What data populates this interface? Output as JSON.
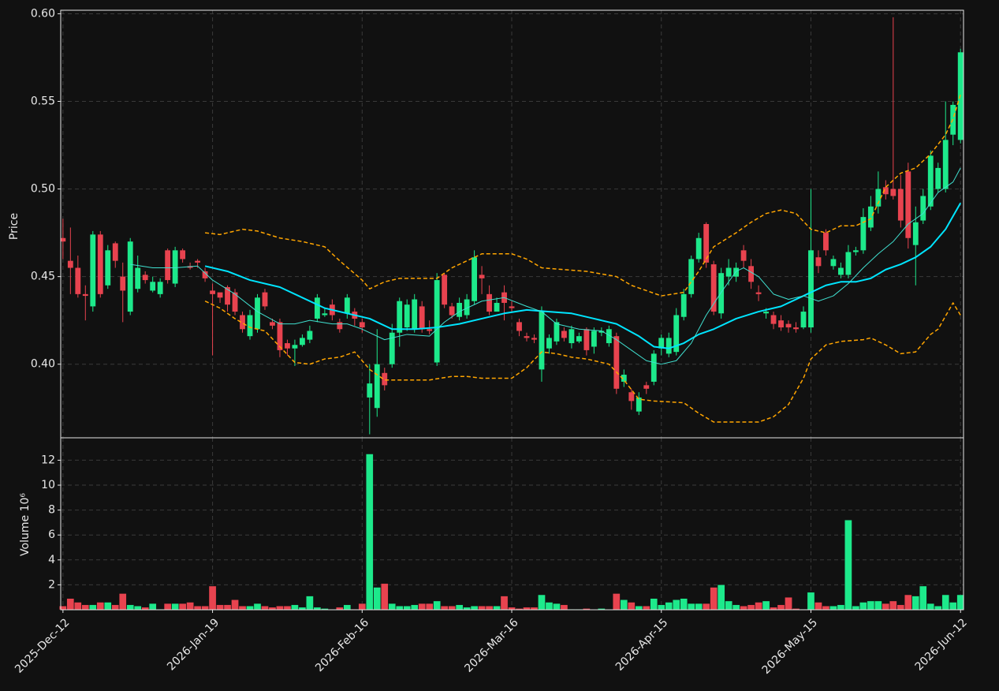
{
  "chart_data": {
    "type": "candlestick",
    "ylabel": "Price",
    "volume_label": "Volume  10⁶",
    "categories": [
      "2025-Dec-12",
      null,
      null,
      null,
      null,
      null,
      null,
      null,
      null,
      null,
      null,
      null,
      null,
      null,
      null,
      null,
      null,
      null,
      null,
      null,
      "2026-Jan-19",
      null,
      null,
      null,
      null,
      null,
      null,
      null,
      null,
      null,
      null,
      null,
      null,
      null,
      null,
      null,
      null,
      null,
      null,
      null,
      "2026-Feb-16",
      null,
      null,
      null,
      null,
      null,
      null,
      null,
      null,
      null,
      null,
      null,
      null,
      null,
      null,
      null,
      null,
      null,
      null,
      null,
      "2026-Mar-16",
      null,
      null,
      null,
      null,
      null,
      null,
      null,
      null,
      null,
      null,
      null,
      null,
      null,
      null,
      null,
      null,
      null,
      null,
      null,
      "2026-Apr-15",
      null,
      null,
      null,
      null,
      null,
      null,
      null,
      null,
      null,
      null,
      null,
      null,
      null,
      null,
      null,
      null,
      null,
      null,
      null,
      "2026-May-15",
      null,
      null,
      null,
      null,
      null,
      null,
      null,
      null,
      null,
      null,
      null,
      null,
      null,
      null,
      null,
      null,
      null,
      null,
      null,
      "2026-Jun-12"
    ],
    "open": [
      0.472,
      0.459,
      0.455,
      0.44,
      0.433,
      0.474,
      0.445,
      0.469,
      0.45,
      0.43,
      0.443,
      0.451,
      0.442,
      0.44,
      0.465,
      0.446,
      0.465,
      0.456,
      0.459,
      0.453,
      0.442,
      0.441,
      0.444,
      0.441,
      0.428,
      0.416,
      0.42,
      0.441,
      0.424,
      0.424,
      0.412,
      0.409,
      0.411,
      0.414,
      0.426,
      0.428,
      0.434,
      0.424,
      0.429,
      0.43,
      0.424,
      0.381,
      0.375,
      0.395,
      0.4,
      0.418,
      0.421,
      0.42,
      0.433,
      0.42,
      0.401,
      0.451,
      0.433,
      0.427,
      0.428,
      0.436,
      0.451,
      0.44,
      0.43,
      0.441,
      0.433,
      0.424,
      0.416,
      0.415,
      0.397,
      0.409,
      0.413,
      0.419,
      0.412,
      0.413,
      0.42,
      0.41,
      0.418,
      0.412,
      0.416,
      0.39,
      0.384,
      0.373,
      0.388,
      0.39,
      0.409,
      0.406,
      0.407,
      0.427,
      0.44,
      0.46,
      0.48,
      0.457,
      0.429,
      0.45,
      0.45,
      0.465,
      0.456,
      0.441,
      0.429,
      0.428,
      0.425,
      0.423,
      0.421,
      0.421,
      0.421,
      0.461,
      0.475,
      0.456,
      0.451,
      0.451,
      0.464,
      0.465,
      0.478,
      0.49,
      0.501,
      0.5,
      0.5,
      0.51,
      0.468,
      0.482,
      0.49,
      0.5,
      0.5,
      0.531,
      0.528
    ],
    "high": [
      0.483,
      0.478,
      0.462,
      0.445,
      0.476,
      0.476,
      0.468,
      0.47,
      0.458,
      0.472,
      0.462,
      0.453,
      0.45,
      0.449,
      0.466,
      0.467,
      0.466,
      0.458,
      0.46,
      0.455,
      0.446,
      0.44,
      0.445,
      0.443,
      0.43,
      0.431,
      0.44,
      0.443,
      0.426,
      0.426,
      0.414,
      0.414,
      0.417,
      0.422,
      0.44,
      0.432,
      0.437,
      0.426,
      0.44,
      0.432,
      0.426,
      0.4,
      0.42,
      0.398,
      0.423,
      0.438,
      0.437,
      0.44,
      0.436,
      0.425,
      0.452,
      0.452,
      0.435,
      0.438,
      0.44,
      0.465,
      0.456,
      0.445,
      0.438,
      0.445,
      0.436,
      0.426,
      0.418,
      0.417,
      0.433,
      0.417,
      0.426,
      0.421,
      0.422,
      0.418,
      0.421,
      0.421,
      0.421,
      0.422,
      0.418,
      0.397,
      0.386,
      0.384,
      0.39,
      0.408,
      0.417,
      0.418,
      0.432,
      0.443,
      0.462,
      0.475,
      0.481,
      0.459,
      0.455,
      0.46,
      0.458,
      0.468,
      0.46,
      0.445,
      0.432,
      0.43,
      0.428,
      0.425,
      0.424,
      0.433,
      0.5,
      0.465,
      0.477,
      0.462,
      0.458,
      0.468,
      0.467,
      0.489,
      0.496,
      0.51,
      0.505,
      0.598,
      0.508,
      0.515,
      0.49,
      0.5,
      0.522,
      0.515,
      0.55,
      0.55,
      0.58
    ],
    "low": [
      0.46,
      0.44,
      0.438,
      0.425,
      0.43,
      0.438,
      0.443,
      0.455,
      0.424,
      0.428,
      0.441,
      0.446,
      0.441,
      0.438,
      0.446,
      0.444,
      0.458,
      0.454,
      0.455,
      0.447,
      0.405,
      0.435,
      0.43,
      0.428,
      0.418,
      0.414,
      0.418,
      0.431,
      0.42,
      0.404,
      0.405,
      0.399,
      0.41,
      0.412,
      0.424,
      0.427,
      0.425,
      0.418,
      0.426,
      0.422,
      0.418,
      0.36,
      0.37,
      0.385,
      0.398,
      0.41,
      0.419,
      0.418,
      0.418,
      0.417,
      0.399,
      0.432,
      0.426,
      0.425,
      0.426,
      0.434,
      0.44,
      0.428,
      0.43,
      0.425,
      0.43,
      0.416,
      0.413,
      0.412,
      0.39,
      0.406,
      0.411,
      0.413,
      0.409,
      0.412,
      0.405,
      0.406,
      0.416,
      0.41,
      0.383,
      0.387,
      0.374,
      0.371,
      0.383,
      0.388,
      0.405,
      0.404,
      0.405,
      0.425,
      0.438,
      0.458,
      0.455,
      0.428,
      0.426,
      0.445,
      0.447,
      0.455,
      0.443,
      0.436,
      0.426,
      0.42,
      0.419,
      0.418,
      0.418,
      0.42,
      0.418,
      0.452,
      0.462,
      0.454,
      0.449,
      0.449,
      0.462,
      0.463,
      0.476,
      0.486,
      0.494,
      0.494,
      0.478,
      0.466,
      0.445,
      0.48,
      0.488,
      0.498,
      0.498,
      0.525,
      0.526
    ],
    "close": [
      0.47,
      0.455,
      0.44,
      0.439,
      0.474,
      0.44,
      0.465,
      0.459,
      0.442,
      0.47,
      0.455,
      0.448,
      0.447,
      0.447,
      0.448,
      0.465,
      0.46,
      0.455,
      0.458,
      0.449,
      0.44,
      0.438,
      0.434,
      0.43,
      0.42,
      0.428,
      0.438,
      0.433,
      0.422,
      0.408,
      0.409,
      0.411,
      0.415,
      0.419,
      0.438,
      0.429,
      0.428,
      0.42,
      0.438,
      0.426,
      0.421,
      0.389,
      0.4,
      0.388,
      0.418,
      0.436,
      0.434,
      0.437,
      0.42,
      0.419,
      0.448,
      0.434,
      0.428,
      0.435,
      0.437,
      0.461,
      0.449,
      0.43,
      0.435,
      0.435,
      0.432,
      0.419,
      0.415,
      0.414,
      0.43,
      0.415,
      0.424,
      0.415,
      0.42,
      0.416,
      0.408,
      0.419,
      0.419,
      0.42,
      0.386,
      0.394,
      0.379,
      0.381,
      0.386,
      0.406,
      0.415,
      0.415,
      0.428,
      0.44,
      0.46,
      0.472,
      0.458,
      0.43,
      0.452,
      0.455,
      0.455,
      0.459,
      0.447,
      0.44,
      0.43,
      0.423,
      0.421,
      0.421,
      0.42,
      0.43,
      0.465,
      0.456,
      0.465,
      0.46,
      0.455,
      0.464,
      0.465,
      0.484,
      0.49,
      0.5,
      0.497,
      0.496,
      0.482,
      0.472,
      0.481,
      0.496,
      0.519,
      0.512,
      0.528,
      0.548,
      0.578
    ],
    "volume": [
      0.3,
      0.9,
      0.6,
      0.4,
      0.4,
      0.6,
      0.6,
      0.4,
      1.3,
      0.4,
      0.3,
      0.2,
      0.5,
      0.05,
      0.5,
      0.5,
      0.5,
      0.6,
      0.3,
      0.3,
      1.9,
      0.4,
      0.4,
      0.8,
      0.3,
      0.3,
      0.5,
      0.3,
      0.2,
      0.3,
      0.3,
      0.4,
      0.2,
      1.1,
      0.2,
      0.1,
      0.02,
      0.2,
      0.4,
      0.05,
      0.5,
      12.5,
      1.8,
      2.1,
      0.5,
      0.3,
      0.3,
      0.4,
      0.5,
      0.5,
      0.7,
      0.3,
      0.3,
      0.4,
      0.2,
      0.3,
      0.3,
      0.3,
      0.3,
      1.1,
      0.2,
      0.1,
      0.2,
      0.2,
      1.2,
      0.6,
      0.5,
      0.4,
      0.05,
      0.05,
      0.1,
      0.02,
      0.1,
      0.02,
      1.3,
      0.8,
      0.6,
      0.3,
      0.3,
      0.9,
      0.4,
      0.6,
      0.8,
      0.9,
      0.5,
      0.5,
      0.5,
      1.8,
      2.0,
      0.7,
      0.4,
      0.3,
      0.4,
      0.6,
      0.7,
      0.2,
      0.4,
      1.0,
      0.1,
      0.05,
      1.4,
      0.6,
      0.3,
      0.3,
      0.4,
      7.2,
      0.3,
      0.6,
      0.7,
      0.7,
      0.5,
      0.7,
      0.4,
      1.2,
      1.1,
      1.9,
      0.5,
      0.3,
      1.2,
      0.6,
      1.2
    ],
    "up_color": "#1de98b",
    "down_color": "#e8434f",
    "xlim": [
      -0.3,
      120.4
    ],
    "ylim": [
      0.358,
      0.602
    ],
    "yticks": [
      {
        "value": 0.4,
        "label": "0.40"
      },
      0.45,
      {
        "value": 0.5,
        "label": "0.50"
      },
      0.55,
      {
        "value": 0.6,
        "label": "0.60"
      }
    ],
    "volume_ylim": [
      0,
      13.8
    ],
    "volume_yticks": [
      2,
      4,
      6,
      8,
      10,
      12
    ],
    "grid": true,
    "overlays": [
      {
        "color": "#ffa500",
        "width": 1.5,
        "dashed": true,
        "x": [
          19,
          21,
          24,
          26,
          29,
          32,
          35,
          37,
          40,
          41,
          43,
          45,
          50,
          52,
          56,
          60,
          62,
          64,
          70,
          74,
          76,
          80,
          83,
          85,
          87,
          90,
          92,
          94,
          96,
          98,
          100,
          102,
          104,
          106,
          108,
          110,
          112,
          114,
          116,
          118,
          119,
          120
        ],
        "values": [
          0.475,
          0.474,
          0.477,
          0.476,
          0.472,
          0.47,
          0.467,
          0.459,
          0.448,
          0.443,
          0.447,
          0.449,
          0.449,
          0.455,
          0.463,
          0.463,
          0.46,
          0.455,
          0.453,
          0.45,
          0.445,
          0.439,
          0.441,
          0.453,
          0.467,
          0.475,
          0.481,
          0.486,
          0.488,
          0.486,
          0.477,
          0.475,
          0.479,
          0.479,
          0.483,
          0.501,
          0.509,
          0.512,
          0.52,
          0.531,
          0.54,
          0.554
        ]
      },
      {
        "color": "#ffa500",
        "width": 1.5,
        "dashed": true,
        "x": [
          19,
          21,
          23,
          25,
          27,
          29,
          31,
          33,
          35,
          37,
          39,
          41,
          43,
          46,
          49,
          52,
          54,
          56,
          60,
          62,
          64,
          66,
          68,
          70,
          73,
          75,
          77,
          79,
          83,
          85,
          87,
          91,
          93,
          95,
          97,
          99,
          100,
          102,
          104,
          107,
          108,
          110,
          112,
          114,
          116,
          117,
          119,
          120
        ],
        "values": [
          0.436,
          0.432,
          0.426,
          0.421,
          0.419,
          0.41,
          0.401,
          0.4,
          0.403,
          0.404,
          0.407,
          0.397,
          0.391,
          0.391,
          0.391,
          0.393,
          0.393,
          0.392,
          0.392,
          0.398,
          0.407,
          0.406,
          0.404,
          0.403,
          0.4,
          0.391,
          0.38,
          0.379,
          0.378,
          0.372,
          0.367,
          0.367,
          0.367,
          0.37,
          0.377,
          0.392,
          0.403,
          0.411,
          0.413,
          0.414,
          0.415,
          0.411,
          0.406,
          0.407,
          0.417,
          0.42,
          0.435,
          0.428
        ]
      },
      {
        "color": "#00e5ff",
        "width": 2,
        "dashed": false,
        "x": [
          19,
          22,
          25,
          29,
          32,
          35,
          38,
          41,
          44,
          47,
          50,
          53,
          56,
          59,
          62,
          65,
          68,
          71,
          74,
          77,
          79,
          81,
          83,
          85,
          87,
          90,
          93,
          96,
          99,
          102,
          104,
          106,
          108,
          110,
          112,
          114,
          116,
          118,
          120
        ],
        "values": [
          0.456,
          0.453,
          0.448,
          0.444,
          0.438,
          0.432,
          0.429,
          0.426,
          0.42,
          0.42,
          0.421,
          0.423,
          0.426,
          0.429,
          0.431,
          0.43,
          0.429,
          0.426,
          0.423,
          0.416,
          0.41,
          0.409,
          0.412,
          0.417,
          0.42,
          0.426,
          0.43,
          0.433,
          0.439,
          0.445,
          0.447,
          0.447,
          0.449,
          0.454,
          0.457,
          0.461,
          0.467,
          0.477,
          0.492
        ]
      },
      {
        "color": "#40e0d0",
        "width": 1,
        "dashed": false,
        "x": [
          9,
          12,
          15,
          18,
          20,
          23,
          26,
          29,
          31,
          33,
          36,
          38,
          40,
          43,
          46,
          49,
          51,
          53,
          56,
          59,
          62,
          64,
          66,
          69,
          72,
          74,
          76,
          78,
          80,
          82,
          84,
          86,
          88,
          90,
          91,
          93,
          95,
          97,
          99,
          101,
          103,
          105,
          107,
          109,
          111,
          113,
          115,
          117,
          119,
          120
        ],
        "values": [
          0.457,
          0.455,
          0.455,
          0.456,
          0.448,
          0.44,
          0.43,
          0.423,
          0.423,
          0.425,
          0.423,
          0.423,
          0.42,
          0.414,
          0.417,
          0.416,
          0.424,
          0.43,
          0.436,
          0.438,
          0.433,
          0.43,
          0.423,
          0.42,
          0.419,
          0.414,
          0.408,
          0.402,
          0.4,
          0.402,
          0.412,
          0.428,
          0.441,
          0.453,
          0.455,
          0.45,
          0.44,
          0.437,
          0.439,
          0.436,
          0.439,
          0.446,
          0.455,
          0.463,
          0.47,
          0.48,
          0.486,
          0.498,
          0.504,
          0.512
        ]
      }
    ]
  }
}
